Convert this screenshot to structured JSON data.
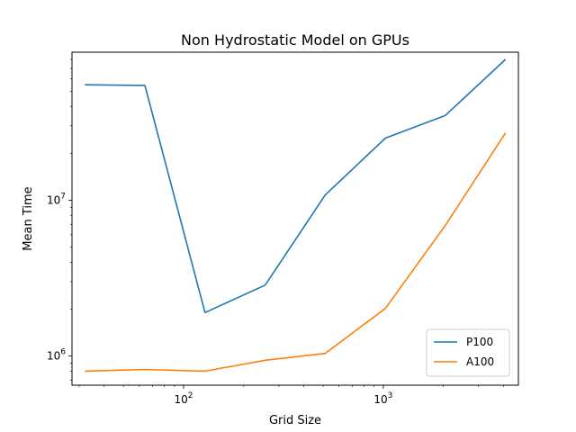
{
  "chart_data": {
    "type": "line",
    "title": "Non Hydrostatic Model on GPUs",
    "xlabel": "Grid Size",
    "ylabel": "Mean Time",
    "xscale": "log",
    "yscale": "log",
    "xlim": [
      27.6,
      4750
    ],
    "ylim": [
      650000,
      89000000
    ],
    "x": [
      32,
      64,
      128,
      256,
      512,
      1024,
      2048,
      4096
    ],
    "x_ticks": [
      {
        "value": 100,
        "base": "10",
        "exp": "2"
      },
      {
        "value": 1000,
        "base": "10",
        "exp": "3"
      }
    ],
    "y_ticks": [
      {
        "value": 1000000,
        "base": "10",
        "exp": "6"
      },
      {
        "value": 10000000,
        "base": "10",
        "exp": "7"
      }
    ],
    "series": [
      {
        "name": "P100",
        "color": "#1f77b4",
        "values": [
          55000000,
          54500000,
          1900000,
          2850000,
          10800000,
          25000000,
          35000000,
          80000000
        ]
      },
      {
        "name": "A100",
        "color": "#ff7f0e",
        "values": [
          800000,
          820000,
          800000,
          940000,
          1040000,
          2020000,
          6900000,
          27000000
        ]
      }
    ],
    "legend": "lower-right",
    "grid": false
  }
}
